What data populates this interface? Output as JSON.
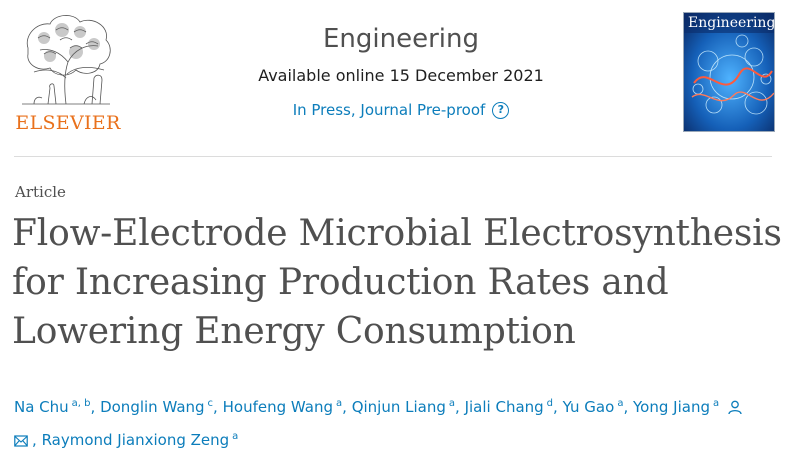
{
  "header": {
    "publisher": "ELSEVIER",
    "journal": "Engineering",
    "available": "Available online 15 December 2021",
    "status": "In Press, Journal Pre-proof",
    "cover_title": "Engineering"
  },
  "article": {
    "type": "Article",
    "title_lines": [
      "Flow-Electrode Microbial Electrosynthesis",
      "for Increasing Production Rates and",
      "Lowering Energy Consumption"
    ]
  },
  "authors": [
    {
      "name": "Na Chu",
      "aff": "a, b"
    },
    {
      "name": "Donglin Wang",
      "aff": "c"
    },
    {
      "name": "Houfeng Wang",
      "aff": "a"
    },
    {
      "name": "Qinjun Liang",
      "aff": "a"
    },
    {
      "name": "Jiali Chang",
      "aff": "d"
    },
    {
      "name": "Yu Gao",
      "aff": "a"
    },
    {
      "name": "Yong Jiang",
      "aff": "a"
    },
    {
      "name": "Raymond Jianxiong Zeng",
      "aff": "a"
    }
  ],
  "separator": ",",
  "colors": {
    "link": "#0c7dbb",
    "publisher_orange": "#e9711c",
    "title_gray": "#505050"
  },
  "icons": {
    "status_help": "help-circle-icon",
    "corresponding": "person-icon",
    "email": "envelope-icon"
  }
}
